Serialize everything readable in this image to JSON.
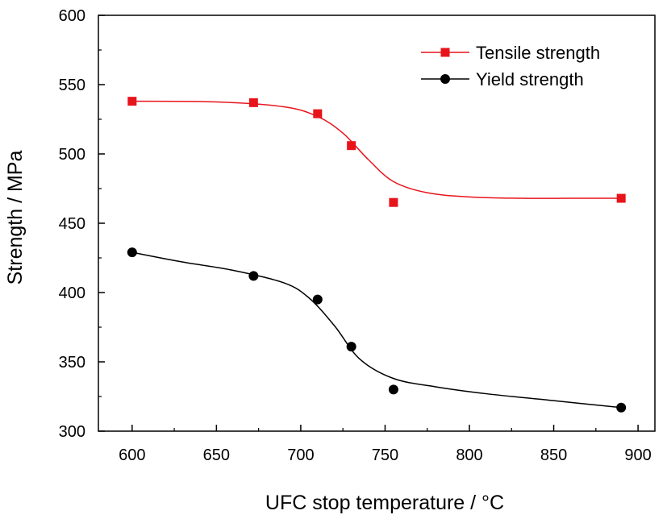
{
  "chart_data": {
    "type": "scatter",
    "xlabel": "UFC stop temperature / °C",
    "ylabel": "Strength / MPa",
    "xlim": [
      580,
      910
    ],
    "ylim": [
      300,
      600
    ],
    "xticks": [
      600,
      650,
      700,
      750,
      800,
      850,
      900
    ],
    "yticks": [
      300,
      350,
      400,
      450,
      500,
      550,
      600
    ],
    "grid": false,
    "legend": "top-right",
    "series": [
      {
        "name": "Tensile strength",
        "color": "#e8141b",
        "marker": "square",
        "x": [
          600,
          672,
          710,
          730,
          755,
          890
        ],
        "y": [
          538,
          537,
          529,
          506,
          465,
          468
        ],
        "fit": {
          "x": [
            600,
            650,
            690,
            710,
            725,
            740,
            755,
            775,
            800,
            830,
            860,
            890
          ],
          "y": [
            538,
            537.5,
            534,
            527,
            515,
            496,
            480,
            472,
            469,
            468,
            468,
            468
          ]
        }
      },
      {
        "name": "Yield strength",
        "color": "#000000",
        "marker": "circle",
        "x": [
          600,
          672,
          710,
          730,
          755,
          890
        ],
        "y": [
          429,
          412,
          395,
          361,
          330,
          317
        ],
        "fit": {
          "x": [
            600,
            630,
            660,
            690,
            705,
            720,
            735,
            755,
            780,
            810,
            850,
            890
          ],
          "y": [
            429,
            422,
            416,
            407,
            396,
            376,
            352,
            338,
            332,
            327,
            322,
            317
          ]
        }
      }
    ]
  }
}
